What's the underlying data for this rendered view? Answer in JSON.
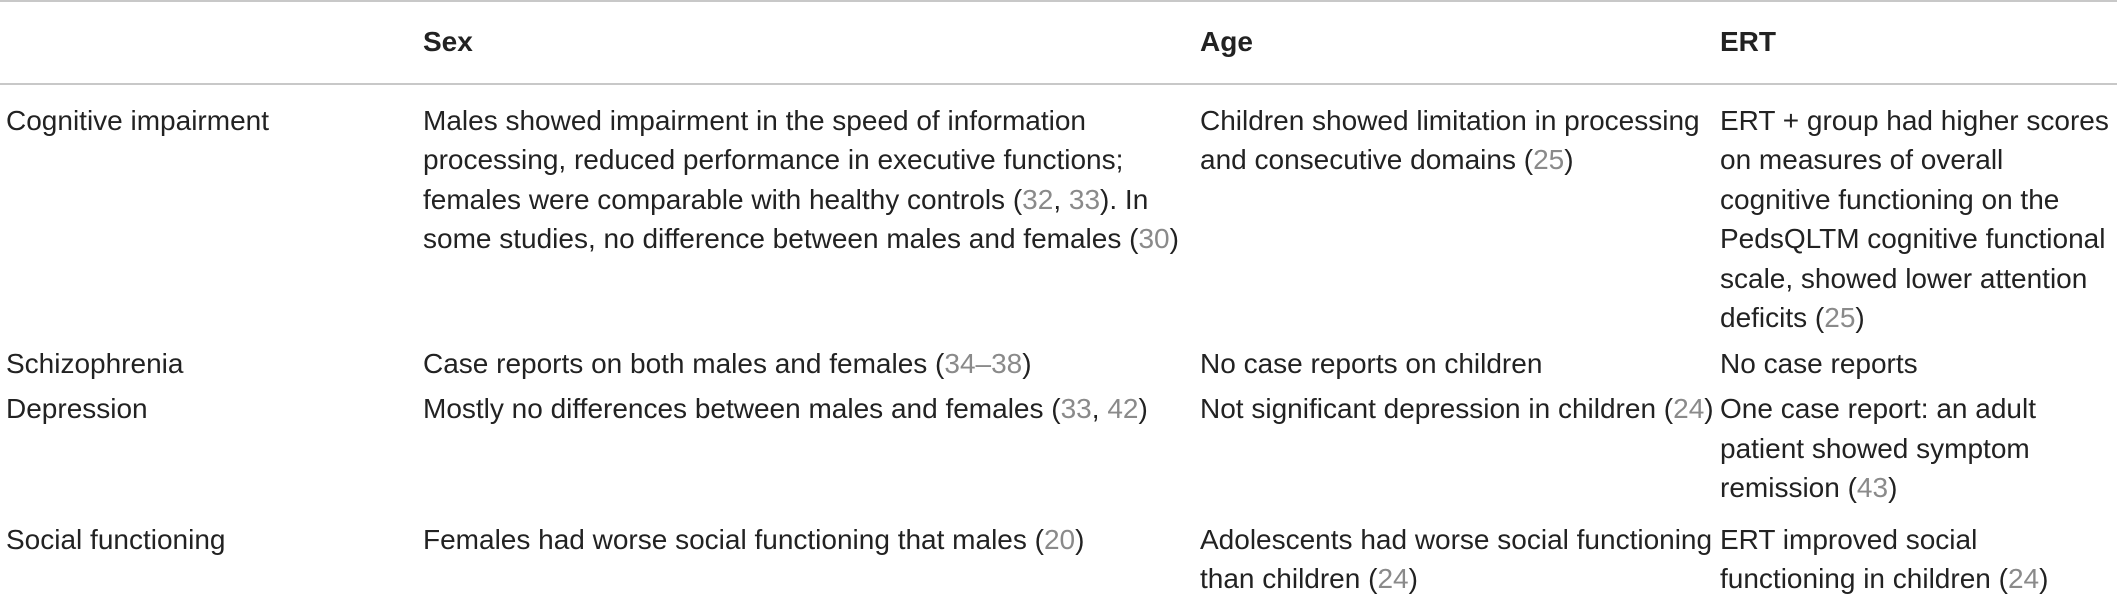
{
  "table": {
    "headers": [
      "",
      "Sex",
      "Age",
      "ERT"
    ],
    "rows": [
      {
        "label": "Cognitive impairment",
        "sex": [
          "Males showed impairment in the speed of information processing, reduced performance in executive functions; females were comparable with healthy controls (",
          "32",
          ", ",
          "33",
          "). In some studies, no difference between males and females (",
          "30",
          ")"
        ],
        "age": [
          "Children showed limitation in processing and consecutive domains (",
          "25",
          ")"
        ],
        "ert": [
          "ERT + group had higher scores on measures of overall cognitive functioning on the PedsQLTM cognitive functional scale, showed lower attention deficits (",
          "25",
          ")"
        ]
      },
      {
        "label": "Schizophrenia",
        "sex": [
          "Case reports on both males and females (",
          "34–38",
          ")"
        ],
        "age": [
          "No case reports on children"
        ],
        "ert": [
          "No case reports"
        ]
      },
      {
        "label": "Depression",
        "sex": [
          "Mostly no differences between males and females (",
          "33",
          ", ",
          "42",
          ")"
        ],
        "age": [
          "Not significant depression in children (",
          "24",
          ")"
        ],
        "ert": [
          "One case report: an adult patient showed symptom remission (",
          "43",
          ")"
        ]
      },
      {
        "label": "Social functioning",
        "sex": [
          "Females had worse social functioning that males (",
          "20",
          ")"
        ],
        "age": [
          "Adolescents had worse social functioning than children (",
          "24",
          ")"
        ],
        "ert": [
          "ERT improved social functioning in children (",
          "24",
          ")"
        ]
      }
    ]
  }
}
